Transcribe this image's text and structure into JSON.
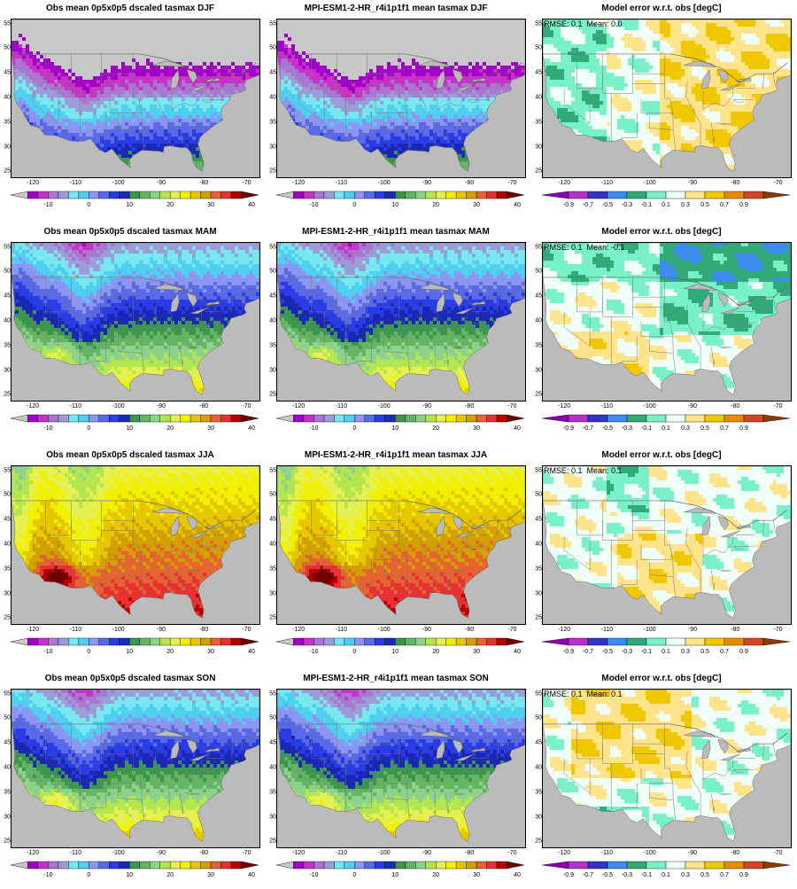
{
  "panels": [
    {
      "title": "Obs mean 0p5x0p5 dscaled tasmax DJF",
      "kind": "abs",
      "season": "DJF",
      "stats": ""
    },
    {
      "title": "MPI-ESM1-2-HR_r4i1p1f1 mean tasmax DJF",
      "kind": "abs",
      "season": "DJF",
      "stats": ""
    },
    {
      "title": "Model error w.r.t. obs [degC]",
      "kind": "err",
      "season": "DJF",
      "stats": "RMSE: 0.1  Mean: 0.0"
    },
    {
      "title": "Obs mean 0p5x0p5 dscaled tasmax MAM",
      "kind": "abs",
      "season": "MAM",
      "stats": ""
    },
    {
      "title": "MPI-ESM1-2-HR_r4i1p1f1 mean tasmax MAM",
      "kind": "abs",
      "season": "MAM",
      "stats": ""
    },
    {
      "title": "Model error w.r.t. obs [degC]",
      "kind": "err",
      "season": "MAM",
      "stats": "RMSE: 0.1  Mean: -0.1"
    },
    {
      "title": "Obs mean 0p5x0p5 dscaled tasmax JJA",
      "kind": "abs",
      "season": "JJA",
      "stats": ""
    },
    {
      "title": "MPI-ESM1-2-HR_r4i1p1f1 mean tasmax JJA",
      "kind": "abs",
      "season": "JJA",
      "stats": ""
    },
    {
      "title": "Model error w.r.t. obs [degC]",
      "kind": "err",
      "season": "JJA",
      "stats": "RMSE: 0.1  Mean: 0.1"
    },
    {
      "title": "Obs mean 0p5x0p5 dscaled tasmax SON",
      "kind": "abs",
      "season": "SON",
      "stats": ""
    },
    {
      "title": "MPI-ESM1-2-HR_r4i1p1f1 mean tasmax SON",
      "kind": "abs",
      "season": "SON",
      "stats": ""
    },
    {
      "title": "Model error w.r.t. obs [degC]",
      "kind": "err",
      "season": "SON",
      "stats": "RMSE: 0.1  Mean: 0.1"
    }
  ],
  "axes": {
    "lon_ticks": [
      "-120",
      "-110",
      "-100",
      "-90",
      "-80",
      "-70"
    ],
    "lat_ticks": [
      "55",
      "50",
      "45",
      "40",
      "35",
      "30",
      "25"
    ]
  },
  "colorbars": {
    "abs": {
      "labels": [
        "-10",
        "0",
        "10",
        "20",
        "30",
        "40"
      ],
      "colors": [
        "#c8c8c8",
        "#a200c8",
        "#c832c8",
        "#a878d0",
        "#9c9cd8",
        "#78e8f0",
        "#50d0f0",
        "#8c96f0",
        "#5a6ae6",
        "#2a3ce6",
        "#1a28b4",
        "#3c9650",
        "#64b464",
        "#8cd28c",
        "#b4e650",
        "#e6f050",
        "#f0f000",
        "#e6c800",
        "#d2a000",
        "#e66432",
        "#e63232",
        "#b40000",
        "#6e0000"
      ]
    },
    "err": {
      "labels": [
        "-0.9",
        "-0.7",
        "-0.5",
        "-0.3",
        "-0.1",
        "0.1",
        "0.3",
        "0.5",
        "0.7",
        "0.9"
      ],
      "colors": [
        "#8c00b4",
        "#b432c8",
        "#3232c8",
        "#3c8cf0",
        "#32aa78",
        "#78f0c8",
        "#f0fff8",
        "#ffe48c",
        "#f0c800",
        "#e68c00",
        "#d24628",
        "#8c3c00"
      ]
    }
  }
}
